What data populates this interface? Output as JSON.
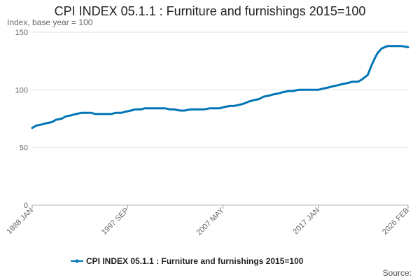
{
  "chart_data": {
    "type": "line",
    "title": "CPI INDEX 05.1.1 : Furniture and furnishings 2015=100",
    "subtitle": "Index, base year = 100",
    "source_label": "Source:",
    "xlabel": "",
    "ylabel": "",
    "ylim": [
      0,
      150
    ],
    "y_ticks": [
      0,
      50,
      100,
      150
    ],
    "x_range": [
      "1988 JAN",
      "2026 FEB"
    ],
    "x_tick_labels": [
      {
        "label": "1988 JAN",
        "date": "1988-01"
      },
      {
        "label": "1997 SEP",
        "date": "1997-09"
      },
      {
        "label": "2007 MAY",
        "date": "2007-05"
      },
      {
        "label": "2017 JAN",
        "date": "2017-01"
      },
      {
        "label": "2026 FEB",
        "date": "2026-02"
      }
    ],
    "grid": true,
    "legend_position": "bottom",
    "color": "#0075b6",
    "series": [
      {
        "name": "CPI INDEX 05.1.1 : Furniture and furnishings 2015=100",
        "points": [
          [
            "1988-01",
            67
          ],
          [
            "1988-06",
            69
          ],
          [
            "1989-01",
            70
          ],
          [
            "1989-06",
            71
          ],
          [
            "1990-01",
            72
          ],
          [
            "1990-06",
            74
          ],
          [
            "1991-01",
            75
          ],
          [
            "1991-06",
            77
          ],
          [
            "1992-01",
            78
          ],
          [
            "1992-06",
            79
          ],
          [
            "1993-01",
            80
          ],
          [
            "1993-06",
            80
          ],
          [
            "1994-01",
            80
          ],
          [
            "1994-06",
            79
          ],
          [
            "1995-01",
            79
          ],
          [
            "1995-06",
            79
          ],
          [
            "1996-01",
            79
          ],
          [
            "1996-06",
            80
          ],
          [
            "1997-01",
            80
          ],
          [
            "1997-06",
            81
          ],
          [
            "1998-01",
            82
          ],
          [
            "1998-06",
            83
          ],
          [
            "1999-01",
            83
          ],
          [
            "1999-06",
            84
          ],
          [
            "2000-01",
            84
          ],
          [
            "2000-06",
            84
          ],
          [
            "2001-01",
            84
          ],
          [
            "2001-06",
            84
          ],
          [
            "2002-01",
            83
          ],
          [
            "2002-06",
            83
          ],
          [
            "2003-01",
            82
          ],
          [
            "2003-06",
            82
          ],
          [
            "2004-01",
            83
          ],
          [
            "2004-06",
            83
          ],
          [
            "2005-01",
            83
          ],
          [
            "2005-06",
            83
          ],
          [
            "2006-01",
            84
          ],
          [
            "2006-06",
            84
          ],
          [
            "2007-01",
            84
          ],
          [
            "2007-06",
            85
          ],
          [
            "2008-01",
            86
          ],
          [
            "2008-06",
            86
          ],
          [
            "2009-01",
            87
          ],
          [
            "2009-06",
            88
          ],
          [
            "2010-01",
            90
          ],
          [
            "2010-06",
            91
          ],
          [
            "2011-01",
            92
          ],
          [
            "2011-06",
            94
          ],
          [
            "2012-01",
            95
          ],
          [
            "2012-06",
            96
          ],
          [
            "2013-01",
            97
          ],
          [
            "2013-06",
            98
          ],
          [
            "2014-01",
            99
          ],
          [
            "2014-06",
            99
          ],
          [
            "2015-01",
            100
          ],
          [
            "2015-06",
            100
          ],
          [
            "2016-01",
            100
          ],
          [
            "2016-06",
            100
          ],
          [
            "2017-01",
            100
          ],
          [
            "2017-06",
            101
          ],
          [
            "2018-01",
            102
          ],
          [
            "2018-06",
            103
          ],
          [
            "2019-01",
            104
          ],
          [
            "2019-06",
            105
          ],
          [
            "2020-01",
            106
          ],
          [
            "2020-06",
            107
          ],
          [
            "2021-01",
            107
          ],
          [
            "2021-06",
            109
          ],
          [
            "2022-01",
            113
          ],
          [
            "2022-06",
            122
          ],
          [
            "2022-10",
            128
          ],
          [
            "2023-01",
            132
          ],
          [
            "2023-06",
            136
          ],
          [
            "2024-01",
            138
          ],
          [
            "2024-06",
            138
          ],
          [
            "2025-01",
            138
          ],
          [
            "2025-06",
            138
          ],
          [
            "2026-02",
            137
          ]
        ]
      }
    ]
  }
}
